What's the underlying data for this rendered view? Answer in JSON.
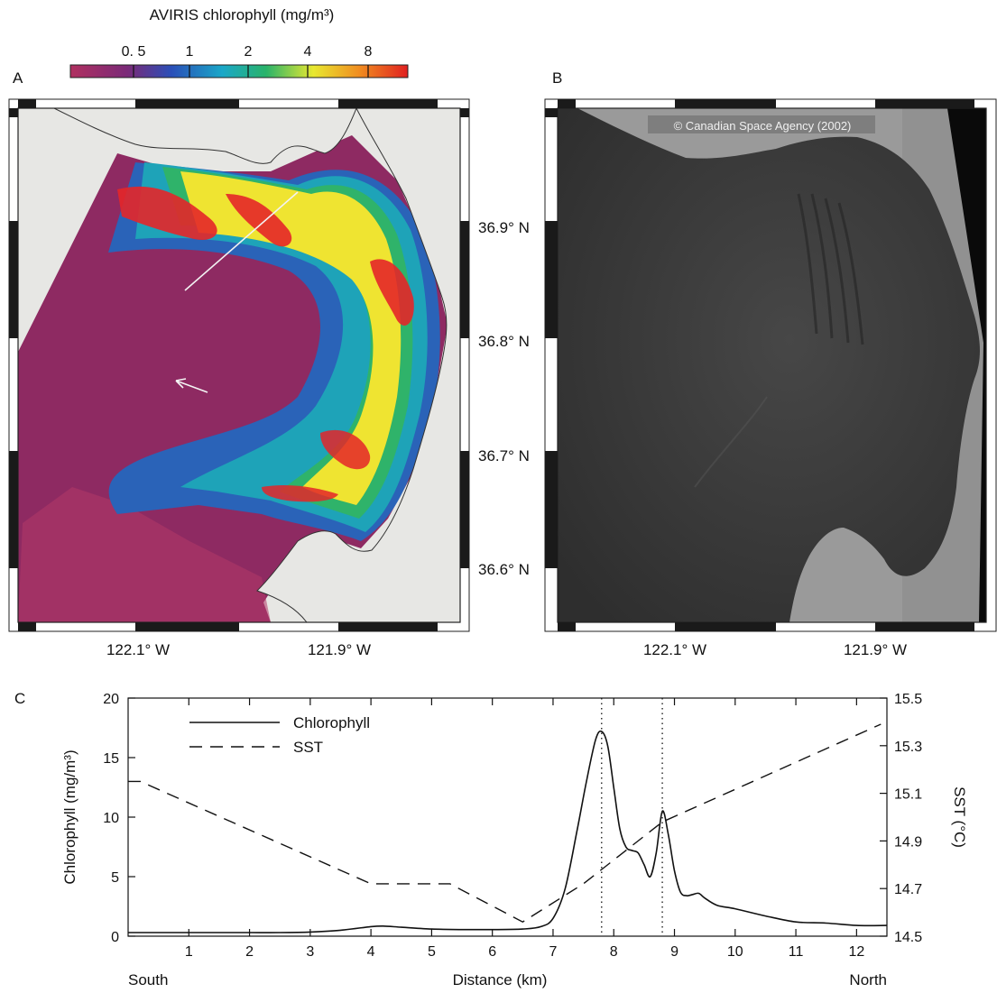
{
  "colorbar": {
    "title": "AVIRIS chlorophyll (mg/m³)",
    "ticks": [
      "0. 5",
      "1",
      "2",
      "4",
      "8"
    ],
    "colors": [
      "#b03060",
      "#7a2a78",
      "#2a4fb8",
      "#1aa7c8",
      "#29b36a",
      "#e8e830",
      "#f08a20",
      "#e02020"
    ]
  },
  "panel_a": {
    "label": "A",
    "lat_labels": [
      "36.9° N",
      "36.8° N",
      "36.7° N",
      "36.6° N"
    ],
    "lon_labels": [
      "122.1° W",
      "121.9° W"
    ],
    "colors": {
      "offshore": "#8e2a62",
      "land": "#e7e7e4",
      "mid": "#1fa0b4",
      "high": "#f2e535",
      "peak": "#e8232a"
    }
  },
  "panel_b": {
    "label": "B",
    "credit": "© Canadian Space Agency (2002)",
    "lon_labels": [
      "122.1° W",
      "121.9° W"
    ],
    "colors": {
      "sea": "#3b3b3b",
      "land": "#9a9a9a",
      "edge": "#0a0a0a"
    }
  },
  "panel_c": {
    "label": "C",
    "ylabel_left": "Chlorophyll (mg/m³)",
    "ylabel_right": "SST (°C)",
    "xlabel": "Distance (km)",
    "x_start_label": "South",
    "x_end_label": "North",
    "legend": {
      "chlorophyll": "Chlorophyll",
      "sst": "SST"
    },
    "left_ticks": [
      "0",
      "5",
      "10",
      "15",
      "20"
    ],
    "right_ticks": [
      "14.5",
      "14.7",
      "14.9",
      "15.1",
      "15.3",
      "15.5"
    ],
    "x_ticks": [
      "1",
      "2",
      "3",
      "4",
      "5",
      "6",
      "7",
      "8",
      "9",
      "10",
      "11",
      "12"
    ]
  },
  "chart_data": {
    "type": "line",
    "xlabel": "Distance (km)",
    "ylabel": "Chlorophyll (mg/m³)",
    "y2label": "SST (°C)",
    "xlim": [
      0,
      12.5
    ],
    "ylim": [
      0,
      20
    ],
    "y2lim": [
      14.5,
      15.5
    ],
    "vlines": [
      7.8,
      8.8
    ],
    "series": [
      {
        "name": "Chlorophyll",
        "axis": "left",
        "style": "solid",
        "x": [
          0,
          0.5,
          1,
          1.5,
          2,
          2.5,
          3,
          3.5,
          4,
          4.2,
          4.5,
          5,
          5.5,
          6,
          6.5,
          6.8,
          7,
          7.2,
          7.4,
          7.55,
          7.7,
          7.8,
          7.9,
          8.0,
          8.1,
          8.2,
          8.3,
          8.4,
          8.5,
          8.6,
          8.7,
          8.8,
          8.9,
          9.0,
          9.1,
          9.2,
          9.3,
          9.4,
          9.5,
          9.7,
          10,
          10.5,
          11,
          11.5,
          12,
          12.5
        ],
        "y": [
          0.3,
          0.3,
          0.3,
          0.3,
          0.3,
          0.3,
          0.35,
          0.5,
          0.8,
          0.85,
          0.75,
          0.6,
          0.55,
          0.55,
          0.6,
          0.8,
          1.5,
          4,
          9,
          13,
          16.5,
          17.2,
          16,
          12.5,
          9,
          7.5,
          7.2,
          7,
          6,
          5,
          7,
          10.5,
          8.5,
          5.5,
          3.7,
          3.4,
          3.5,
          3.6,
          3.2,
          2.6,
          2.3,
          1.7,
          1.2,
          1.1,
          0.9,
          0.9
        ]
      },
      {
        "name": "SST",
        "axis": "right",
        "style": "dashed",
        "x": [
          0,
          0.2,
          4,
          5.3,
          6.5,
          7.5,
          8.8,
          12.4
        ],
        "y": [
          15.15,
          15.15,
          14.72,
          14.72,
          14.56,
          14.72,
          14.98,
          15.39
        ]
      }
    ]
  }
}
